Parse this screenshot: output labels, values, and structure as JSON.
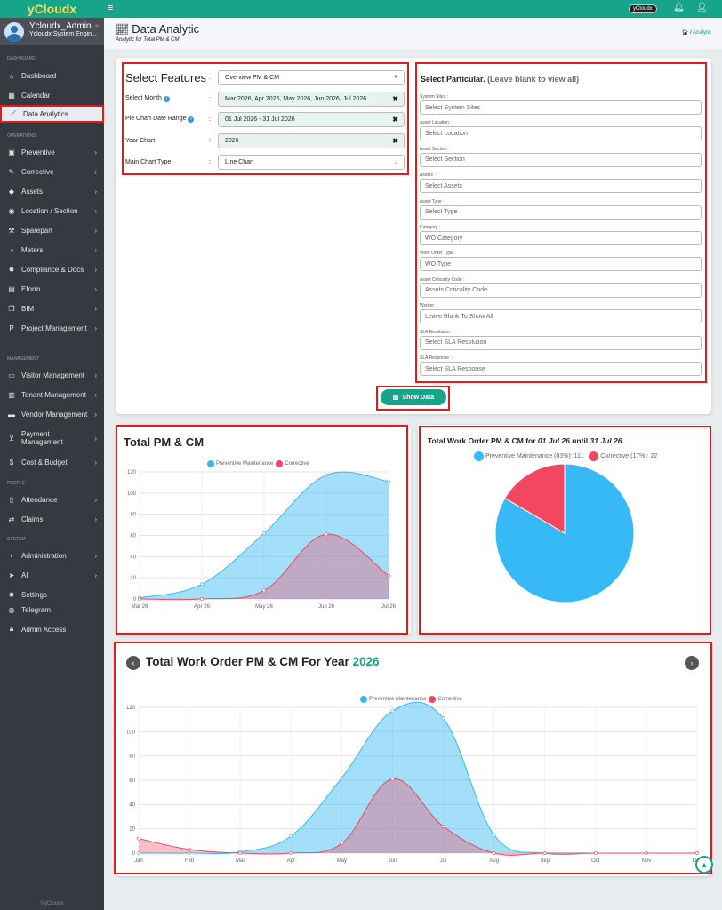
{
  "brand": "yCloudx",
  "user": {
    "name": "Ycloudx_Admin",
    "role": "Ycloudx System Engin..."
  },
  "sidebar": {
    "sections": {
      "dashboard": "DASHBOARD",
      "operations": "OPERATIONS",
      "management": "MANAGEMENT",
      "people": "PEOPLE",
      "system": "SYSTEM"
    },
    "items": {
      "dashboard": "Dashboard",
      "calendar": "Calendar",
      "data_analytics": "Data Analytics",
      "preventive": "Preventive",
      "corrective": "Corrective",
      "assets": "Assets",
      "location": "Location / Section",
      "sparepart": "Sparepart",
      "meters": "Meters",
      "compliance": "Compliance & Docs",
      "eform": "Eform",
      "bim": "BIM",
      "project": "Project Management",
      "visitor": "Visitor Management",
      "tenant": "Tenant Management",
      "vendor": "Vendor Management",
      "payment": "Payment Management",
      "cost": "Cost & Budget",
      "attendance": "Attendance",
      "claims": "Claims",
      "administration": "Administration",
      "ai": "AI",
      "settings": "Settings",
      "telegram": "Telegram",
      "admin_access": "Admin Access"
    },
    "footer": "©yCloudx"
  },
  "topbar": {
    "tag": "yCloudx"
  },
  "page": {
    "title": "Data Analytic",
    "subtitle": "Analytic for Total PM & CM",
    "breadcrumb_sep": "/",
    "breadcrumb": "Analytic"
  },
  "features": {
    "title": "Select Features",
    "select_features_value": "Overview PM & CM",
    "select_month_label": "Select Month",
    "select_month_value": "Mar 2026, Apr 2026, May 2026, Jun 2026, Jul 2026",
    "pie_range_label": "Pie Chart Date Range",
    "pie_range_value": "01 Jul 2026 - 31 Jul 2026",
    "year_chart_label": "Year Chart",
    "year_chart_value": "2026",
    "main_chart_type_label": "Main Chart Type",
    "main_chart_type_value": "Line Chart",
    "colon": ":",
    "clear": "✖"
  },
  "particular": {
    "title": "Select Particular.",
    "hint": "(Leave blank to view all)",
    "fields": [
      {
        "label": "System Sites :",
        "placeholder": "Select System Sites"
      },
      {
        "label": "Asset Location :",
        "placeholder": "Select Location"
      },
      {
        "label": "Asset Section :",
        "placeholder": "Select Section"
      },
      {
        "label": "Assets :",
        "placeholder": "Select Assets"
      },
      {
        "label": "Asset Type :",
        "placeholder": "Select Type"
      },
      {
        "label": "Category :",
        "placeholder": "WO Category"
      },
      {
        "label": "Work Order Type :",
        "placeholder": "WO Type"
      },
      {
        "label": "Asset Criticality Code :",
        "placeholder": "Assets Criticality Code"
      },
      {
        "label": "Worker :",
        "placeholder": "Leave Blank To Show All"
      },
      {
        "label": "SLA Resolution :",
        "placeholder": "Select SLA Resolution"
      },
      {
        "label": "SLA Response :",
        "placeholder": "Select SLA Response"
      }
    ]
  },
  "show_button": "Show Data",
  "colors": {
    "brand": "#17a589",
    "pm": "#36b9f5",
    "cm": "#f2475f",
    "highlight": "#e01b1b"
  },
  "chart_data": [
    {
      "type": "area",
      "title": "Total PM & CM",
      "x": [
        "Mar 26",
        "Apr 26",
        "May 26",
        "Jun 26",
        "Jul 26"
      ],
      "series": [
        {
          "name": "Preventive Maintenance",
          "values": [
            1,
            14,
            62,
            117,
            111
          ]
        },
        {
          "name": "Corrective",
          "values": [
            0,
            0,
            8,
            61,
            22
          ]
        }
      ],
      "ylim": [
        0,
        120
      ],
      "yticks": [
        0,
        20,
        40,
        60,
        80,
        100,
        120
      ],
      "legend": "top"
    },
    {
      "type": "pie",
      "title_prefix": "Total Work Order PM & CM for",
      "date_from": "01 Jul 26",
      "until": "until",
      "date_to": "31 Jul 26.",
      "slices": [
        {
          "name": "Preventive Maintenance",
          "label": "Preventive Maintenance (83%): 111",
          "value": 111
        },
        {
          "name": "Corrective",
          "label": "Corrective (17%): 22",
          "value": 22
        }
      ],
      "legend": "top"
    },
    {
      "type": "area",
      "title": "Total Work Order PM & CM For Year",
      "year": "2026",
      "x": [
        "Jan",
        "Feb",
        "Mar",
        "Apr",
        "May",
        "Jun",
        "Jul",
        "Aug",
        "Sep",
        "Oct",
        "Nov",
        "Dec"
      ],
      "series": [
        {
          "name": "Preventive Maintenance",
          "values": [
            0,
            0,
            1,
            14,
            62,
            117,
            111,
            15,
            0,
            0,
            0,
            0
          ]
        },
        {
          "name": "Corrective",
          "values": [
            12,
            3,
            0,
            0,
            8,
            61,
            22,
            0,
            0,
            0,
            0,
            0
          ]
        }
      ],
      "ylim": [
        0,
        120
      ],
      "yticks": [
        0,
        20,
        40,
        60,
        80,
        100,
        120
      ],
      "legend": "top"
    }
  ]
}
